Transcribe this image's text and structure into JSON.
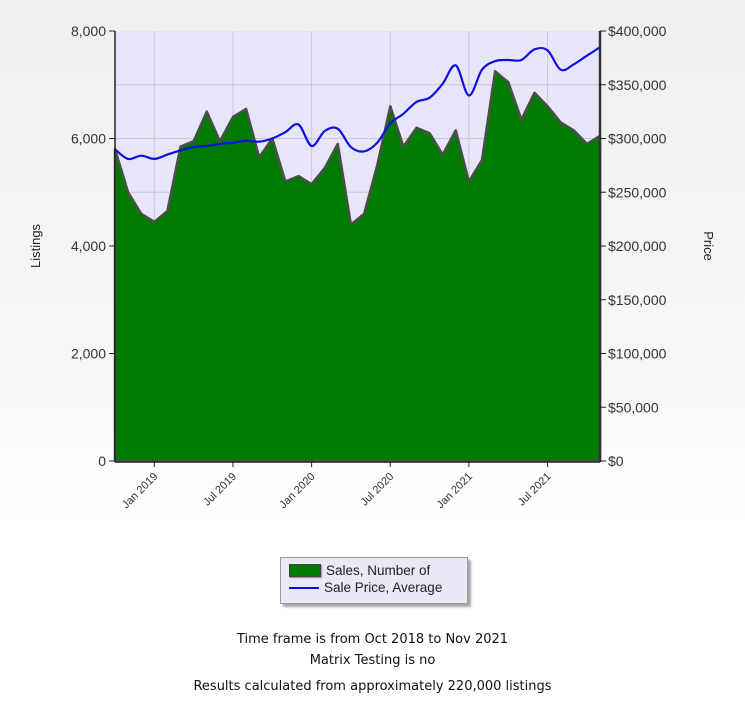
{
  "chart_data": {
    "type": "area+line",
    "title": "",
    "x": [
      "Oct 2018",
      "Nov 2018",
      "Dec 2018",
      "Jan 2019",
      "Feb 2019",
      "Mar 2019",
      "Apr 2019",
      "May 2019",
      "Jun 2019",
      "Jul 2019",
      "Aug 2019",
      "Sep 2019",
      "Oct 2019",
      "Nov 2019",
      "Dec 2019",
      "Jan 2020",
      "Feb 2020",
      "Mar 2020",
      "Apr 2020",
      "May 2020",
      "Jun 2020",
      "Jul 2020",
      "Aug 2020",
      "Sep 2020",
      "Oct 2020",
      "Nov 2020",
      "Dec 2020",
      "Jan 2021",
      "Feb 2021",
      "Mar 2021",
      "Apr 2021",
      "May 2021",
      "Jun 2021",
      "Jul 2021",
      "Aug 2021",
      "Sep 2021",
      "Oct 2021",
      "Nov 2021"
    ],
    "xticks": [
      "Jan 2019",
      "Jul 2019",
      "Jan 2020",
      "Jul 2020",
      "Jan 2021",
      "Jul 2021"
    ],
    "series": [
      {
        "name": "Sales, Number of",
        "type": "area",
        "axis": "left",
        "color": "#007a00",
        "values": [
          5800,
          5000,
          4600,
          4450,
          4650,
          5850,
          5950,
          6500,
          5950,
          6400,
          6550,
          5650,
          6000,
          5200,
          5300,
          5150,
          5450,
          5900,
          4400,
          4600,
          5500,
          6600,
          5850,
          6200,
          6100,
          5700,
          6150,
          5200,
          5600,
          7250,
          7050,
          6350,
          6850,
          6600,
          6300,
          6150,
          5900,
          6050
        ]
      },
      {
        "name": "Sale Price, Average",
        "type": "line",
        "axis": "right",
        "color": "#1010e0",
        "values": [
          290000,
          281000,
          284000,
          281000,
          285000,
          289000,
          292000,
          293000,
          295000,
          296000,
          298000,
          297000,
          300000,
          306000,
          313000,
          293000,
          307000,
          309000,
          292000,
          288000,
          296000,
          314000,
          323000,
          334000,
          338000,
          351000,
          368000,
          340000,
          364000,
          372000,
          373000,
          373000,
          383000,
          382000,
          364000,
          369000,
          377000,
          385000
        ]
      }
    ],
    "ylabel": "Listings",
    "ylim": [
      0,
      8000
    ],
    "yticks": [
      "0",
      "2,000",
      "4,000",
      "6,000",
      "8,000"
    ],
    "y2label": "Price",
    "y2lim": [
      0,
      400000
    ],
    "y2ticks": [
      "$0",
      "$50,000",
      "$100,000",
      "$150,000",
      "$200,000",
      "$250,000",
      "$300,000",
      "$350,000",
      "$400,000"
    ],
    "grid": true,
    "legend_position": "bottom-center",
    "plot_background": "#e6e6f8"
  },
  "legend": {
    "items": [
      {
        "label": "Sales, Number of",
        "icon": "green-area-swatch"
      },
      {
        "label": "Sale Price, Average",
        "icon": "blue-line-swatch"
      }
    ]
  },
  "footer": {
    "timeframe": "Time frame is from Oct 2018 to Nov 2021",
    "matrix": "Matrix Testing is no",
    "results": "Results calculated from approximately 220,000 listings"
  }
}
